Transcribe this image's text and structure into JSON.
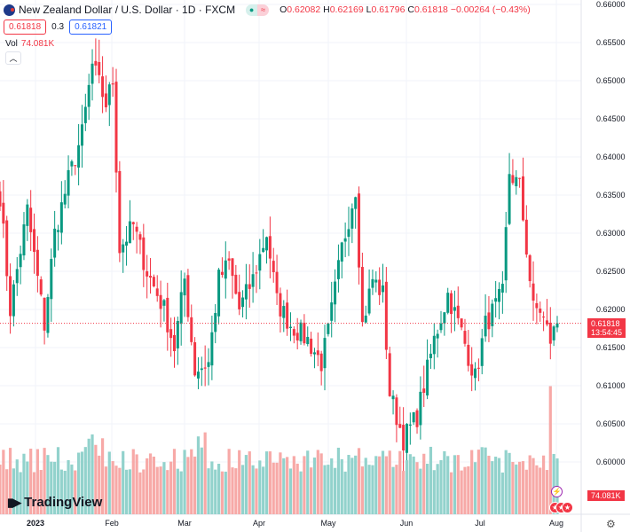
{
  "header": {
    "title": "New Zealand Dollar / U.S. Dollar · 1D · FXCM",
    "open_label": "O",
    "open": "0.62082",
    "high_label": "H",
    "high": "0.62169",
    "low_label": "L",
    "low": "0.61796",
    "close_label": "C",
    "close": "0.61818",
    "change": "−0.00264 (−0.43%)",
    "bid": "0.61818",
    "spread": "0.3",
    "ask": "0.61821",
    "vol_label": "Vol",
    "vol_value": "74.081K",
    "collapse_icon": "chevron-up"
  },
  "price_axis": {
    "ticks": [
      "0.66000",
      "0.65500",
      "0.65000",
      "0.64500",
      "0.64000",
      "0.63500",
      "0.63000",
      "0.62500",
      "0.62000",
      "0.61500",
      "0.61000",
      "0.60500",
      "0.60000"
    ],
    "last_price": "0.61818",
    "countdown": "13:54:45",
    "volume_label": "74.081K"
  },
  "time_axis": {
    "labels": [
      "2023",
      "Feb",
      "Mar",
      "Apr",
      "May",
      "Jun",
      "Jul",
      "Aug"
    ]
  },
  "branding": {
    "logo": "TradingView"
  },
  "colors": {
    "up": "#089981",
    "down": "#f23645",
    "vol_up": "#92d2cc",
    "vol_down": "#f7a9a7"
  },
  "chart_data": {
    "type": "candlestick",
    "ylim": [
      0.595,
      0.66
    ],
    "symbol": "NZDUSD",
    "interval": "1D",
    "close_keypoints": [
      [
        0,
        0.635
      ],
      [
        3,
        0.62
      ],
      [
        8,
        0.633
      ],
      [
        13,
        0.618
      ],
      [
        16,
        0.63
      ],
      [
        20,
        0.637
      ],
      [
        24,
        0.643
      ],
      [
        27,
        0.652
      ],
      [
        31,
        0.647
      ],
      [
        33,
        0.65
      ],
      [
        35,
        0.628
      ],
      [
        39,
        0.631
      ],
      [
        43,
        0.625
      ],
      [
        48,
        0.62
      ],
      [
        51,
        0.615
      ],
      [
        54,
        0.624
      ],
      [
        57,
        0.612
      ],
      [
        61,
        0.613
      ],
      [
        64,
        0.624
      ],
      [
        67,
        0.626
      ],
      [
        70,
        0.62
      ],
      [
        74,
        0.624
      ],
      [
        78,
        0.63
      ],
      [
        81,
        0.621
      ],
      [
        85,
        0.618
      ],
      [
        90,
        0.616
      ],
      [
        94,
        0.613
      ],
      [
        96,
        0.617
      ],
      [
        100,
        0.628
      ],
      [
        104,
        0.636
      ],
      [
        106,
        0.618
      ],
      [
        109,
        0.624
      ],
      [
        112,
        0.622
      ],
      [
        114,
        0.609
      ],
      [
        118,
        0.603
      ],
      [
        122,
        0.606
      ],
      [
        127,
        0.616
      ],
      [
        131,
        0.622
      ],
      [
        135,
        0.617
      ],
      [
        139,
        0.611
      ],
      [
        142,
        0.618
      ],
      [
        147,
        0.622
      ],
      [
        149,
        0.638
      ],
      [
        152,
        0.636
      ],
      [
        156,
        0.62
      ],
      [
        158,
        0.62
      ],
      [
        161,
        0.616
      ],
      [
        163,
        0.61818
      ]
    ],
    "last_volume_k": 74.081
  }
}
